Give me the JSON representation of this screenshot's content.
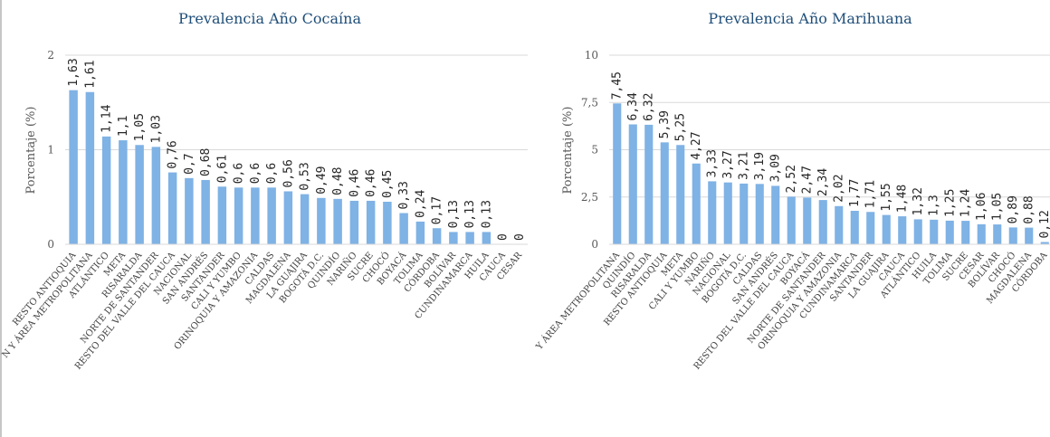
{
  "colors": {
    "bar": "#7fb2e5",
    "title": "#1f4e79",
    "grid": "#d9d9d9"
  },
  "chart_data": [
    {
      "type": "bar",
      "title": "Prevalencia Año Cocaína",
      "ylabel": "Porcentaje (%)",
      "xlabel": "",
      "ylim": [
        0,
        2
      ],
      "yticks": [
        "0",
        "1",
        "2"
      ],
      "yticks_values": [
        0,
        1,
        2
      ],
      "grid": true,
      "categories": [
        "RESTO ANTIOQUIA",
        "MEDELLÍN Y ÁREA METROPOLITANA",
        "ATLÁNTICO",
        "META",
        "RISARALDA",
        "NORTE DE SANTANDER",
        "RESTO DEL VALLE DEL CAUCA",
        "NACIONAL",
        "SAN ANDRÉS",
        "SANTANDER",
        "CALI Y YUMBO",
        "ORINOQUIA Y AMAZONIA",
        "CALDAS",
        "MAGDALENA",
        "LA GUAJIRA",
        "BOGOTÁ D.C.",
        "QUINDÍO",
        "NARIÑO",
        "SUCRE",
        "CHOCÓ",
        "BOYACÁ",
        "TOLIMA",
        "CÓRDOBA",
        "BOLÍVAR",
        "CUNDINAMARCA",
        "HUILA",
        "CAUCA",
        "CESAR"
      ],
      "category_labels": [
        "RESTO ANTIOQUIA",
        "N Y ÁREA METROPOLITANA",
        "ATLÁNTICO",
        "META",
        "RISARALDA",
        "NORTE DE SANTANDER",
        "RESTO DEL VALLE DEL CAUCA",
        "NACIONAL",
        "SAN ANDRÉS",
        "SANTANDER",
        "CALI Y YUMBO",
        "ORINOQUIA Y AMAZONIA",
        "CALDAS",
        "MAGDALENA",
        "LA GUAJIRA",
        "BOGOTÁ D.C.",
        "QUINDÍO",
        "NARIÑO",
        "SUCRE",
        "CHOCÓ",
        "BOYACÁ",
        "TOLIMA",
        "CÓRDOBA",
        "BOLÍVAR",
        "CUNDINAMARCA",
        "HUILA",
        "CAUCA",
        "CESAR"
      ],
      "values": [
        1.63,
        1.61,
        1.14,
        1.1,
        1.05,
        1.03,
        0.76,
        0.7,
        0.68,
        0.61,
        0.6,
        0.6,
        0.6,
        0.56,
        0.53,
        0.49,
        0.48,
        0.46,
        0.46,
        0.45,
        0.33,
        0.24,
        0.17,
        0.13,
        0.13,
        0.13,
        0,
        0
      ],
      "value_labels": [
        "1,63",
        "1,61",
        "1,14",
        "1,1",
        "1,05",
        "1,03",
        "0,76",
        "0,7",
        "0,68",
        "0,61",
        "0,6",
        "0,6",
        "0,6",
        "0,56",
        "0,53",
        "0,49",
        "0,48",
        "0,46",
        "0,46",
        "0,45",
        "0,33",
        "0,24",
        "0,17",
        "0,13",
        "0,13",
        "0,13",
        "0",
        "0"
      ]
    },
    {
      "type": "bar",
      "title": "Prevalencia Año Marihuana",
      "ylabel": "Porcentaje (%)",
      "xlabel": "",
      "ylim": [
        0,
        10
      ],
      "yticks": [
        "0",
        "2,5",
        "5",
        "7,5",
        "10"
      ],
      "yticks_values": [
        0,
        2.5,
        5,
        7.5,
        10
      ],
      "grid": true,
      "categories": [
        "MEDELLÍN Y ÁREA METROPOLITANA",
        "QUINDÍO",
        "RISARALDA",
        "RESTO ANTIOQUIA",
        "META",
        "CALI Y YUMBO",
        "NARIÑO",
        "NACIONAL",
        "BOGOTÁ D.C.",
        "CALDAS",
        "SAN ANDRÉS",
        "RESTO DEL VALLE DEL CAUCA",
        "BOYACÁ",
        "NORTE DE SANTANDER",
        "ORINOQUIA Y AMAZONIA",
        "CUNDINAMARCA",
        "SANTANDER",
        "LA GUAJIRA",
        "CAUCA",
        "ATLÁNTICO",
        "HUILA",
        "TOLIMA",
        "SUCRE",
        "CESAR",
        "BOLÍVAR",
        "CHOCÓ",
        "MAGDALENA",
        "CÓRDOBA"
      ],
      "category_labels": [
        "Y ÁREA METROPOLITANA",
        "QUINDÍO",
        "RISARALDA",
        "RESTO ANTIOQUIA",
        "META",
        "CALI Y YUMBO",
        "NARIÑO",
        "NACIONAL",
        "BOGOTÁ D.C.",
        "CALDAS",
        "SAN ANDRÉS",
        "RESTO DEL VALLE DEL CAUCA",
        "BOYACÁ",
        "NORTE DE SANTANDER",
        "ORINOQUIA Y AMAZONIA",
        "CUNDINAMARCA",
        "SANTANDER",
        "LA GUAJIRA",
        "CAUCA",
        "ATLÁNTICO",
        "HUILA",
        "TOLIMA",
        "SUCRE",
        "CESAR",
        "BOLÍVAR",
        "CHOCÓ",
        "MAGDALENA",
        "CÓRDOBA"
      ],
      "values": [
        7.45,
        6.34,
        6.32,
        5.39,
        5.25,
        4.27,
        3.33,
        3.27,
        3.21,
        3.19,
        3.09,
        2.52,
        2.47,
        2.34,
        2.02,
        1.77,
        1.71,
        1.55,
        1.48,
        1.32,
        1.3,
        1.25,
        1.24,
        1.06,
        1.05,
        0.89,
        0.88,
        0.12
      ],
      "value_labels": [
        "7,45",
        "6,34",
        "6,32",
        "5,39",
        "5,25",
        "4,27",
        "3,33",
        "3,27",
        "3,21",
        "3,19",
        "3,09",
        "2,52",
        "2,47",
        "2,34",
        "2,02",
        "1,77",
        "1,71",
        "1,55",
        "1,48",
        "1,32",
        "1,3",
        "1,25",
        "1,24",
        "1,06",
        "1,05",
        "0,89",
        "0,88",
        "0,12"
      ]
    }
  ]
}
